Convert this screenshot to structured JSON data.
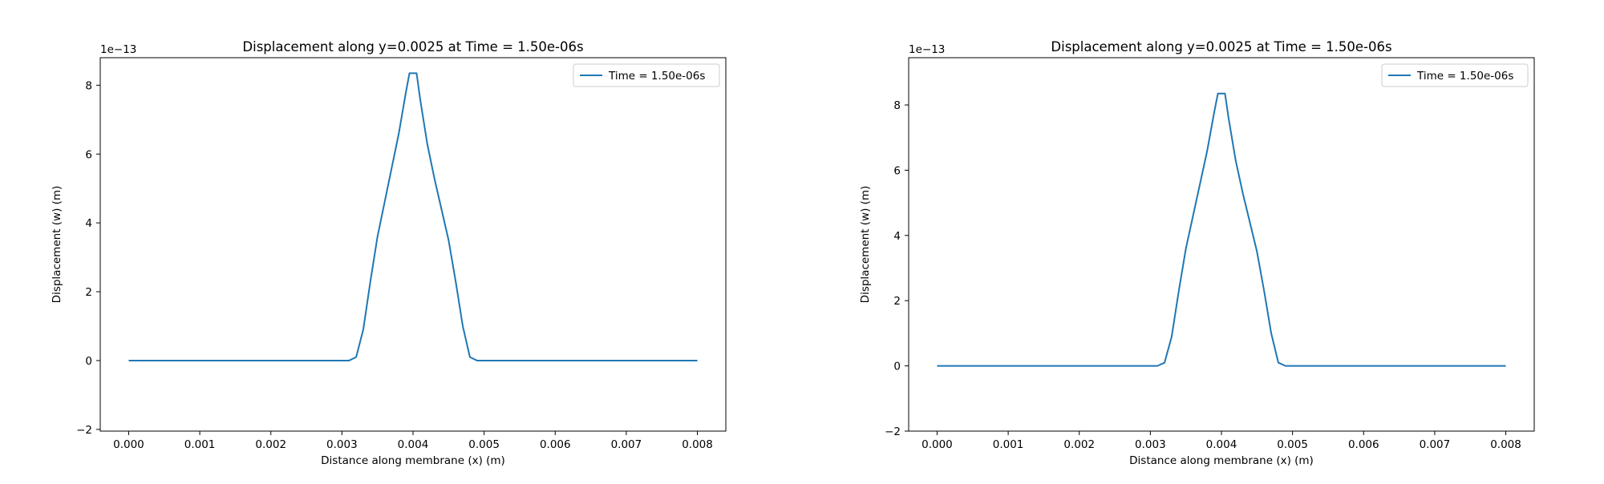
{
  "colors": {
    "line": "#1f77b4",
    "axes": "#000000",
    "background": "#ffffff"
  },
  "chart_data": [
    {
      "type": "line",
      "title": "Displacement along y=0.0025 at Time = 1.50e-06s",
      "xlabel": "Distance along membrane (x) (m)",
      "ylabel": "Displacement (w) (m)",
      "offset_text": "1e−13",
      "xlim": [
        -0.0004,
        0.0084
      ],
      "ylim": [
        -2.05,
        8.8
      ],
      "x_ticks": [
        0,
        0.001,
        0.002,
        0.003,
        0.004,
        0.005,
        0.006,
        0.007,
        0.008
      ],
      "x_tick_labels": [
        "0.000",
        "0.001",
        "0.002",
        "0.003",
        "0.004",
        "0.005",
        "0.006",
        "0.007",
        "0.008"
      ],
      "y_ticks": [
        -2,
        0,
        2,
        4,
        6,
        8
      ],
      "y_tick_labels": [
        "−2",
        "0",
        "2",
        "4",
        "6",
        "8"
      ],
      "legend_position": "top-right",
      "grid": false,
      "series": [
        {
          "name": "Time = 1.50e-06s",
          "x": [
            0,
            0.0005,
            0.001,
            0.0015,
            0.002,
            0.0025,
            0.003,
            0.0031,
            0.0032,
            0.0033,
            0.0034,
            0.0035,
            0.0036,
            0.0037,
            0.0038,
            0.0039,
            0.00395,
            0.00405,
            0.0041,
            0.0042,
            0.0043,
            0.0044,
            0.0045,
            0.0046,
            0.0047,
            0.0048,
            0.0049,
            0.005,
            0.0055,
            0.006,
            0.0065,
            0.007,
            0.0075,
            0.008
          ],
          "y": [
            0,
            0,
            0,
            0,
            0,
            0,
            0,
            0,
            0.1,
            0.9,
            2.3,
            3.6,
            4.6,
            5.6,
            6.6,
            7.8,
            8.35,
            8.35,
            7.6,
            6.3,
            5.3,
            4.4,
            3.5,
            2.3,
            1.0,
            0.1,
            0,
            0,
            0,
            0,
            0,
            0,
            0,
            0
          ]
        }
      ]
    },
    {
      "type": "line",
      "title": "Displacement along y=0.0025 at Time = 1.50e-06s",
      "xlabel": "Distance along membrane (x) (m)",
      "ylabel": "Displacement (w) (m)",
      "offset_text": "1e−13",
      "xlim": [
        -0.0004,
        0.0084
      ],
      "ylim": [
        -2.0,
        9.45
      ],
      "x_ticks": [
        0,
        0.001,
        0.002,
        0.003,
        0.004,
        0.005,
        0.006,
        0.007,
        0.008
      ],
      "x_tick_labels": [
        "0.000",
        "0.001",
        "0.002",
        "0.003",
        "0.004",
        "0.005",
        "0.006",
        "0.007",
        "0.008"
      ],
      "y_ticks": [
        -2,
        0,
        2,
        4,
        6,
        8
      ],
      "y_tick_labels": [
        "−2",
        "0",
        "2",
        "4",
        "6",
        "8"
      ],
      "legend_position": "top-right",
      "grid": false,
      "series": [
        {
          "name": "Time = 1.50e-06s",
          "x": [
            0,
            0.0005,
            0.001,
            0.0015,
            0.002,
            0.0025,
            0.003,
            0.0031,
            0.0032,
            0.0033,
            0.0034,
            0.0035,
            0.0036,
            0.0037,
            0.0038,
            0.0039,
            0.00395,
            0.00405,
            0.0041,
            0.0042,
            0.0043,
            0.0044,
            0.0045,
            0.0046,
            0.0047,
            0.0048,
            0.0049,
            0.005,
            0.0055,
            0.006,
            0.0065,
            0.007,
            0.0075,
            0.008
          ],
          "y": [
            0,
            0,
            0,
            0,
            0,
            0,
            0,
            0,
            0.1,
            0.9,
            2.3,
            3.6,
            4.6,
            5.6,
            6.6,
            7.8,
            8.35,
            8.35,
            7.6,
            6.3,
            5.3,
            4.4,
            3.5,
            2.3,
            1.0,
            0.1,
            0,
            0,
            0,
            0,
            0,
            0,
            0,
            0
          ]
        }
      ]
    }
  ]
}
